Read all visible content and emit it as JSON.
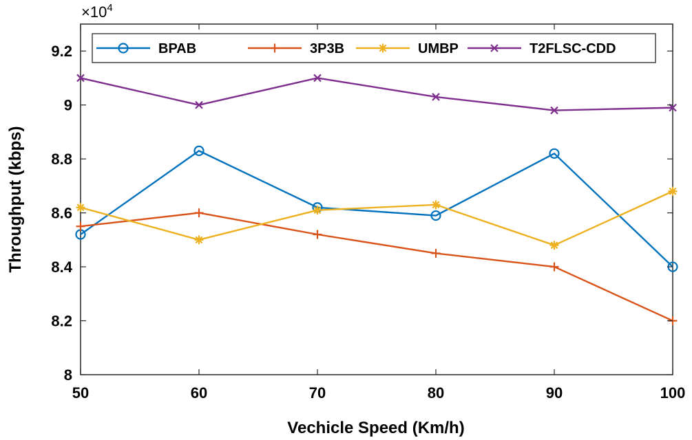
{
  "chart_data": {
    "type": "line",
    "x": [
      50,
      60,
      70,
      80,
      90,
      100
    ],
    "xlabel": "Vechicle Speed (Km/h)",
    "ylabel": "Throughput (kbps)",
    "y_multiplier_base": "×10",
    "y_multiplier_exp": "4",
    "xlim": [
      50,
      100
    ],
    "ylim": [
      8,
      9.3
    ],
    "xticks": [
      50,
      60,
      70,
      80,
      90,
      100
    ],
    "yticks": [
      8,
      8.2,
      8.4,
      8.6,
      8.8,
      9,
      9.2
    ],
    "ytick_labels": [
      "8",
      "8.2",
      "8.4",
      "8.6",
      "8.8",
      "9",
      "9.2"
    ],
    "grid": false,
    "legend_placement": "top",
    "series": [
      {
        "name": "BPAB",
        "color": "#0072BD",
        "marker": "circle",
        "values": [
          8.52,
          8.83,
          8.62,
          8.59,
          8.82,
          8.4
        ]
      },
      {
        "name": "3P3B",
        "color": "#D95319",
        "marker": "plus",
        "values": [
          8.55,
          8.6,
          8.52,
          8.45,
          8.4,
          8.2
        ]
      },
      {
        "name": "UMBP",
        "color": "#EDB120",
        "marker": "asterisk",
        "values": [
          8.62,
          8.5,
          8.61,
          8.63,
          8.48,
          8.68
        ]
      },
      {
        "name": "T2FLSC-CDD",
        "color": "#7E2F8E",
        "marker": "x",
        "values": [
          9.1,
          9.0,
          9.1,
          9.03,
          8.98,
          8.99
        ]
      }
    ]
  }
}
